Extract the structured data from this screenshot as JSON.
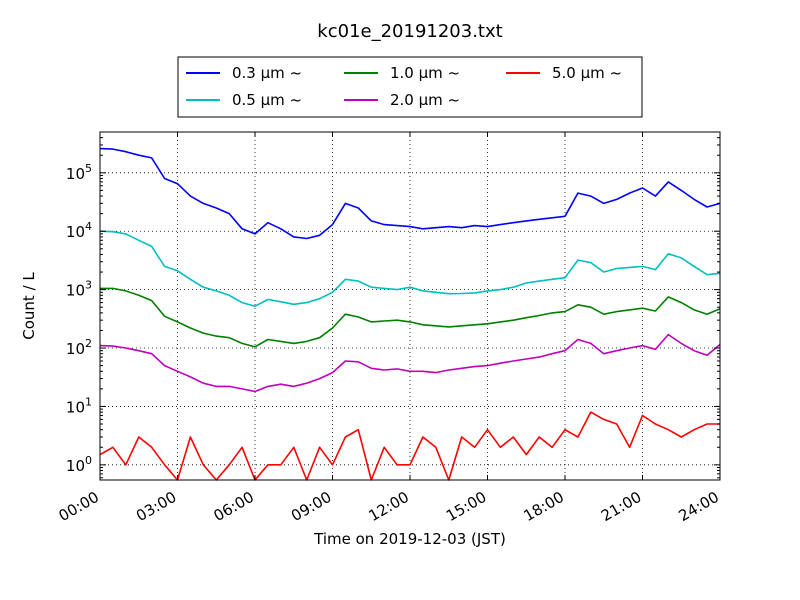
{
  "chart_data": {
    "type": "line",
    "title": "kc01e_20191203.txt",
    "xlabel": "Time on 2019-12-03 (JST)",
    "ylabel": "Count / L",
    "yscale": "log",
    "xlim": [
      "00:00",
      "24:00"
    ],
    "ylim": [
      0.55,
      500000
    ],
    "grid": true,
    "legend_position": "top-center",
    "x_ticks": [
      "00:00",
      "03:00",
      "06:00",
      "09:00",
      "12:00",
      "15:00",
      "18:00",
      "21:00",
      "24:00"
    ],
    "y_ticks": [
      {
        "value": 1,
        "base": "10",
        "exp": "0"
      },
      {
        "value": 10,
        "base": "10",
        "exp": "1"
      },
      {
        "value": 100,
        "base": "10",
        "exp": "2"
      },
      {
        "value": 1000,
        "base": "10",
        "exp": "3"
      },
      {
        "value": 10000,
        "base": "10",
        "exp": "4"
      },
      {
        "value": 100000,
        "base": "10",
        "exp": "5"
      }
    ],
    "x_hours": [
      0,
      0.5,
      1,
      1.5,
      2,
      2.5,
      3,
      3.5,
      4,
      4.5,
      5,
      5.5,
      6,
      6.5,
      7,
      7.5,
      8,
      8.5,
      9,
      9.5,
      10,
      10.5,
      11,
      11.5,
      12,
      12.5,
      13,
      13.5,
      14,
      14.5,
      15,
      15.5,
      16,
      16.5,
      17,
      17.5,
      18,
      18.5,
      19,
      19.5,
      20,
      20.5,
      21,
      21.5,
      22,
      22.5,
      23,
      23.5,
      24
    ],
    "series": [
      {
        "name": "0.3 μm ~",
        "legend_label": "0.3 μm  ~",
        "color": "#0000ff",
        "values": [
          260000,
          255000,
          230000,
          200000,
          180000,
          80000,
          65000,
          40000,
          30000,
          25000,
          20000,
          11000,
          9000,
          14000,
          11000,
          8000,
          7500,
          8500,
          13000,
          30000,
          25000,
          15000,
          13000,
          12500,
          12000,
          11000,
          11500,
          12000,
          11500,
          12500,
          12000,
          13000,
          14000,
          15000,
          16000,
          17000,
          18000,
          45000,
          40000,
          30000,
          35000,
          45000,
          55000,
          40000,
          70000,
          50000,
          35000,
          26000,
          30000
        ]
      },
      {
        "name": "0.5 μm ~",
        "legend_label": "0.5 μm  ~",
        "color": "#00bfbf",
        "values": [
          10000,
          9800,
          9000,
          7000,
          5500,
          2500,
          2100,
          1500,
          1100,
          950,
          800,
          600,
          520,
          680,
          620,
          560,
          600,
          700,
          900,
          1500,
          1400,
          1100,
          1050,
          1000,
          1100,
          950,
          900,
          850,
          860,
          880,
          950,
          1000,
          1100,
          1300,
          1400,
          1500,
          1600,
          3200,
          2900,
          2000,
          2300,
          2400,
          2500,
          2200,
          4100,
          3500,
          2500,
          1800,
          1900
        ]
      },
      {
        "name": "1.0 μm ~",
        "legend_label": "1.0 μm  ~",
        "color": "#008000",
        "values": [
          1050,
          1050,
          950,
          800,
          650,
          350,
          280,
          220,
          180,
          160,
          150,
          120,
          105,
          140,
          130,
          120,
          130,
          150,
          220,
          380,
          340,
          280,
          290,
          300,
          280,
          250,
          240,
          230,
          240,
          250,
          260,
          280,
          300,
          330,
          360,
          400,
          420,
          550,
          500,
          380,
          420,
          450,
          480,
          430,
          750,
          600,
          450,
          380,
          470
        ]
      },
      {
        "name": "2.0 μm ~",
        "legend_label": "2.0 μm  ~",
        "color": "#bf00bf",
        "values": [
          110,
          108,
          100,
          90,
          80,
          50,
          40,
          32,
          25,
          22,
          22,
          20,
          18,
          22,
          24,
          22,
          25,
          30,
          38,
          60,
          58,
          45,
          42,
          44,
          40,
          40,
          38,
          42,
          45,
          48,
          50,
          55,
          60,
          65,
          70,
          80,
          90,
          140,
          120,
          80,
          90,
          100,
          110,
          95,
          170,
          120,
          90,
          75,
          115
        ]
      },
      {
        "name": "5.0 μm ~",
        "legend_label": "5.0 μm  ~",
        "color": "#ff0000",
        "values": [
          1.5,
          2,
          1,
          3,
          2,
          1,
          0.55,
          3,
          1,
          0.55,
          1,
          2,
          0.55,
          1,
          1,
          2,
          0.55,
          2,
          1,
          3,
          4,
          0.55,
          2,
          1,
          1,
          3,
          2,
          0.55,
          3,
          2,
          4,
          2,
          3,
          1.5,
          3,
          2,
          4,
          3,
          8,
          6,
          5,
          2,
          7,
          5,
          4,
          3,
          4,
          5,
          5
        ]
      }
    ]
  }
}
